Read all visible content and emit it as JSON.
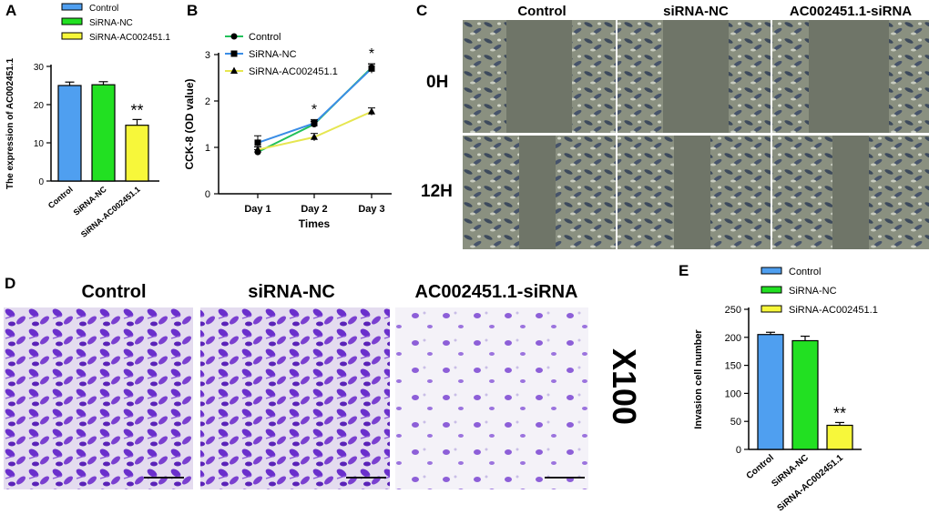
{
  "panel_letters": {
    "a": "A",
    "b": "B",
    "c": "C",
    "d": "D",
    "e": "E"
  },
  "colors": {
    "control": "#4f9ff0",
    "sirna_nc": "#22e022",
    "sirna_ac": "#f7f73a",
    "line_control": "#22c05a",
    "line_nc": "#3a8de6",
    "line_ac": "#e6e650",
    "stain": "#7a3fd0",
    "phase_bg": "#6f7568"
  },
  "panel_c": {
    "headers": [
      "Control",
      "siRNA-NC",
      "AC002451.1-siRNA"
    ],
    "rows": [
      "0H",
      "12H"
    ]
  },
  "panel_d": {
    "headers": [
      "Control",
      "siRNA-NC",
      "AC002451.1-siRNA"
    ],
    "magnification": "X100"
  },
  "chart_data": [
    {
      "id": "A",
      "type": "bar",
      "categories": [
        "Control",
        "SiRNA-NC",
        "SiRNA-AC002451.1"
      ],
      "values": [
        25,
        25.2,
        14.6
      ],
      "errors": [
        0.9,
        0.8,
        1.5
      ],
      "ylabel": "The expression of AC002451.1",
      "ylim": [
        0,
        30
      ],
      "yticks": [
        0,
        10,
        20,
        30
      ],
      "legend": [
        "Control",
        "SiRNA-NC",
        "SiRNA-AC002451.1"
      ],
      "legend_position": "top-right",
      "annotations": [
        {
          "category": "SiRNA-AC002451.1",
          "text": "**"
        }
      ]
    },
    {
      "id": "B",
      "type": "line",
      "x": [
        "Day 1",
        "Day 2",
        "Day 3"
      ],
      "series": [
        {
          "name": "Control",
          "values": [
            0.9,
            1.5,
            2.72
          ],
          "errors": [
            0.05,
            0.06,
            0.08
          ],
          "marker": "circle"
        },
        {
          "name": "SiRNA-NC",
          "values": [
            1.1,
            1.52,
            2.7
          ],
          "errors": [
            0.15,
            0.08,
            0.1
          ],
          "marker": "square"
        },
        {
          "name": "SiRNA-AC002451.1",
          "values": [
            0.95,
            1.22,
            1.77
          ],
          "errors": [
            0.06,
            0.08,
            0.08
          ],
          "marker": "triangle"
        }
      ],
      "xlabel": "Times",
      "ylabel": "CCK-8 (OD value)",
      "ylim": [
        0,
        3
      ],
      "yticks": [
        0,
        1,
        2,
        3
      ],
      "legend_position": "top-left",
      "annotations": [
        {
          "x": "Day 2",
          "text": "*"
        },
        {
          "x": "Day 3",
          "text": "*"
        }
      ]
    },
    {
      "id": "E",
      "type": "bar",
      "categories": [
        "Control",
        "SiRNA-NC",
        "SiRNA-AC002451.1"
      ],
      "values": [
        205,
        194,
        43
      ],
      "errors": [
        4,
        8,
        5
      ],
      "ylabel": "Invasion cell number",
      "ylim": [
        0,
        250
      ],
      "yticks": [
        0,
        50,
        100,
        150,
        200,
        250
      ],
      "legend": [
        "Control",
        "SiRNA-NC",
        "SiRNA-AC002451.1"
      ],
      "legend_position": "top",
      "annotations": [
        {
          "category": "SiRNA-AC002451.1",
          "text": "**"
        }
      ]
    }
  ]
}
